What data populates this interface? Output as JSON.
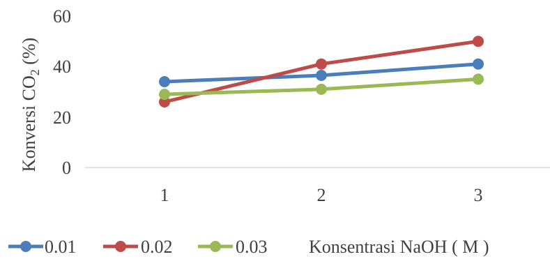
{
  "chart_data": {
    "type": "line",
    "categories": [
      "1",
      "2",
      "3"
    ],
    "series": [
      {
        "name": "0.01",
        "values": [
          34,
          36.5,
          41
        ],
        "color": "#4A7EBB"
      },
      {
        "name": "0.02",
        "values": [
          26,
          41,
          50
        ],
        "color": "#BE4B48"
      },
      {
        "name": "0.03",
        "values": [
          29,
          31,
          35
        ],
        "color": "#98B954"
      }
    ],
    "yticks": [
      "0",
      "20",
      "40",
      "60"
    ],
    "ylim": [
      0,
      60
    ],
    "ylabel": {
      "main": "Konversi CO",
      "sub": "2",
      "suffix": " (%)"
    },
    "xlabel": "Konsentrasi NaOH ( M )",
    "grid": false,
    "legend_position": "bottom"
  }
}
